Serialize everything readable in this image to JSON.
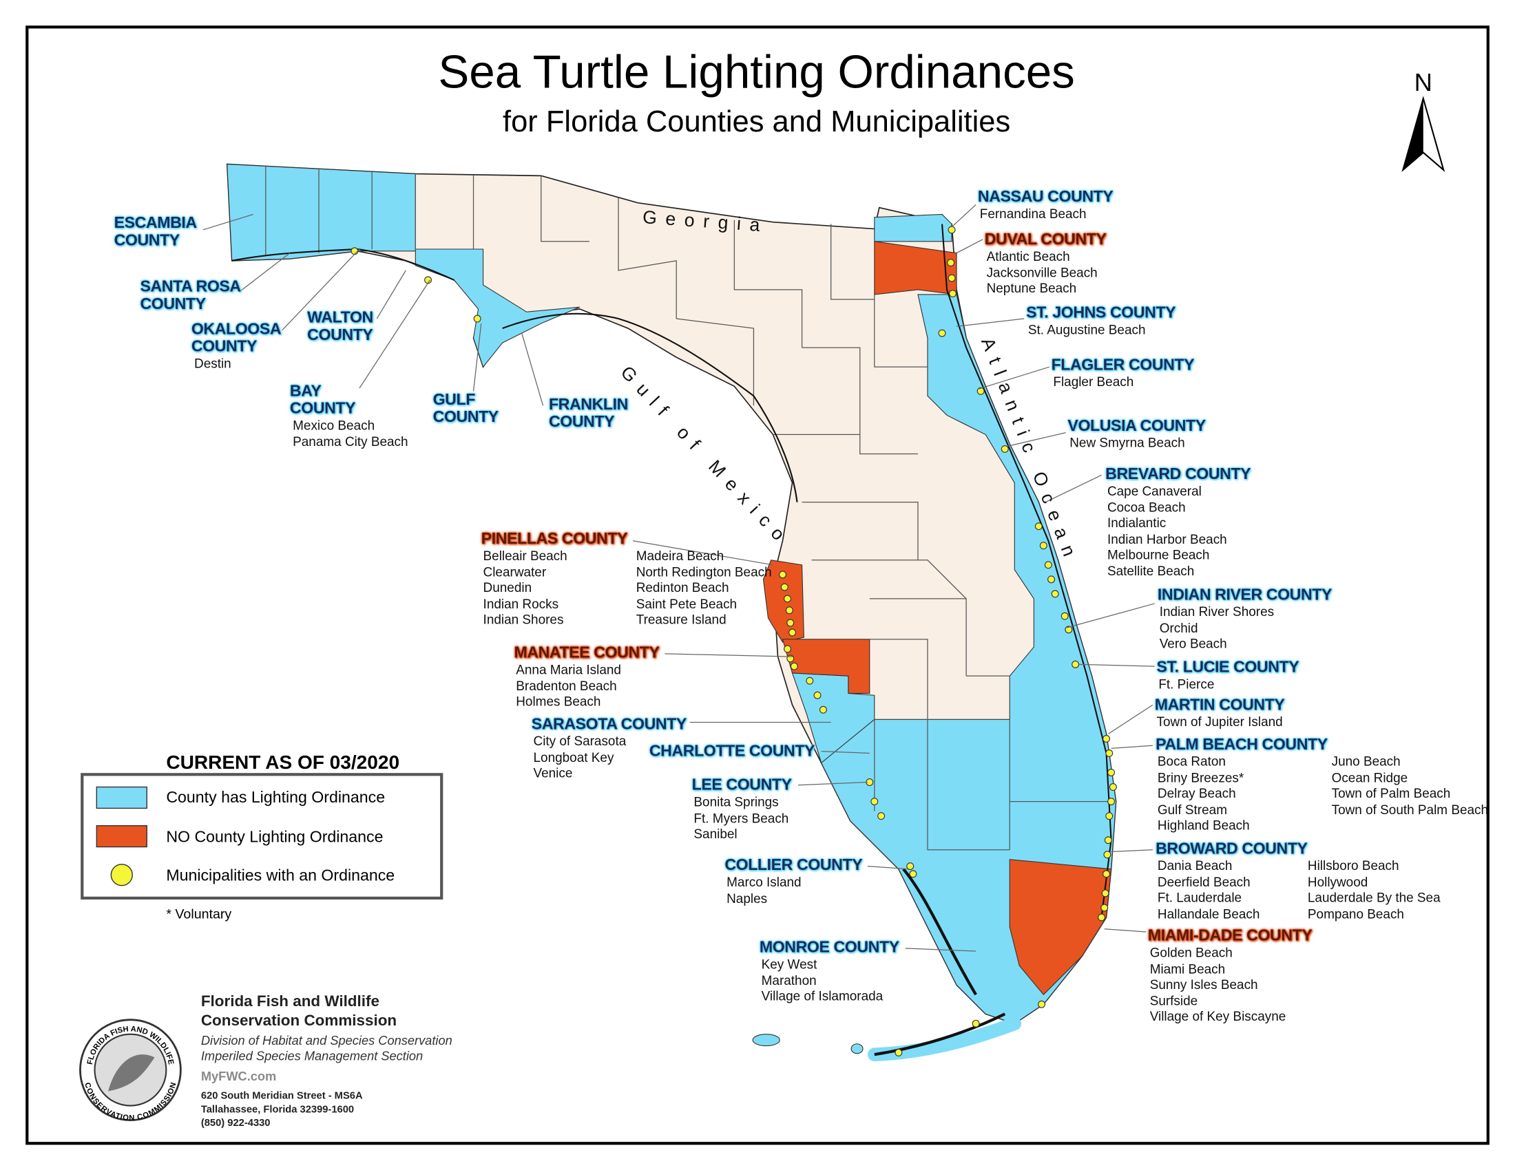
{
  "title": "Sea Turtle Lighting Ordinances",
  "subtitle": "for Florida Counties and Municipalities",
  "north": "N",
  "water_labels": [
    "Georgia",
    "Gulf of Mexico",
    "Atlantic Ocean"
  ],
  "counties": [
    {
      "name": "ESCAMBIA COUNTY",
      "has_ordinance": true,
      "municipalities": []
    },
    {
      "name": "SANTA ROSA COUNTY",
      "has_ordinance": true,
      "municipalities": []
    },
    {
      "name": "OKALOOSA COUNTY",
      "has_ordinance": true,
      "municipalities": [
        "Destin"
      ]
    },
    {
      "name": "WALTON COUNTY",
      "has_ordinance": true,
      "municipalities": []
    },
    {
      "name": "BAY COUNTY",
      "has_ordinance": true,
      "municipalities": [
        "Mexico Beach",
        "Panama City Beach"
      ]
    },
    {
      "name": "GULF COUNTY",
      "has_ordinance": true,
      "municipalities": []
    },
    {
      "name": "FRANKLIN COUNTY",
      "has_ordinance": true,
      "municipalities": []
    },
    {
      "name": "NASSAU COUNTY",
      "has_ordinance": true,
      "municipalities": [
        "Fernandina Beach"
      ]
    },
    {
      "name": "DUVAL COUNTY",
      "has_ordinance": false,
      "municipalities": [
        "Atlantic Beach",
        "Jacksonville Beach",
        "Neptune Beach"
      ]
    },
    {
      "name": "ST. JOHNS COUNTY",
      "has_ordinance": true,
      "municipalities": [
        "St. Augustine Beach"
      ]
    },
    {
      "name": "FLAGLER COUNTY",
      "has_ordinance": true,
      "municipalities": [
        "Flagler Beach"
      ]
    },
    {
      "name": "VOLUSIA COUNTY",
      "has_ordinance": true,
      "municipalities": [
        "New Smyrna Beach"
      ]
    },
    {
      "name": "BREVARD COUNTY",
      "has_ordinance": true,
      "municipalities": [
        "Cape Canaveral",
        "Cocoa Beach",
        "Indialantic",
        "Indian Harbor Beach",
        "Melbourne Beach",
        "Satellite Beach"
      ]
    },
    {
      "name": "INDIAN RIVER COUNTY",
      "has_ordinance": true,
      "municipalities": [
        "Indian River Shores",
        "Orchid",
        "Vero Beach"
      ]
    },
    {
      "name": "ST. LUCIE COUNTY",
      "has_ordinance": true,
      "municipalities": [
        "Ft. Pierce"
      ]
    },
    {
      "name": "MARTIN COUNTY",
      "has_ordinance": true,
      "municipalities": [
        "Town of Jupiter Island"
      ]
    },
    {
      "name": "PALM BEACH COUNTY",
      "has_ordinance": true,
      "municipalities": [
        "Boca Raton",
        "Briny Breezes*",
        "Delray Beach",
        "Gulf Stream",
        "Highland Beach",
        "Juno Beach",
        "Ocean Ridge",
        "Town of Palm Beach",
        "Town of South Palm Beach"
      ]
    },
    {
      "name": "BROWARD COUNTY",
      "has_ordinance": true,
      "municipalities": [
        "Dania Beach",
        "Deerfield Beach",
        "Ft. Lauderdale",
        "Hallandale Beach",
        "Hillsboro Beach",
        "Hollywood",
        "Lauderdale By the Sea",
        "Pompano Beach"
      ]
    },
    {
      "name": "MIAMI-DADE COUNTY",
      "has_ordinance": false,
      "municipalities": [
        "Golden Beach",
        "Miami Beach",
        "Sunny Isles Beach",
        "Surfside",
        "Village of Key Biscayne"
      ]
    },
    {
      "name": "MONROE COUNTY",
      "has_ordinance": true,
      "municipalities": [
        "Key West",
        "Marathon",
        "Village of Islamorada"
      ]
    },
    {
      "name": "COLLIER COUNTY",
      "has_ordinance": true,
      "municipalities": [
        "Marco Island",
        "Naples"
      ]
    },
    {
      "name": "LEE COUNTY",
      "has_ordinance": true,
      "municipalities": [
        "Bonita Springs",
        "Ft. Myers Beach",
        "Sanibel"
      ]
    },
    {
      "name": "CHARLOTTE COUNTY",
      "has_ordinance": true,
      "municipalities": []
    },
    {
      "name": "SARASOTA COUNTY",
      "has_ordinance": true,
      "municipalities": [
        "City of Sarasota",
        "Longboat Key",
        "Venice"
      ]
    },
    {
      "name": "MANATEE COUNTY",
      "has_ordinance": false,
      "municipalities": [
        "Anna Maria Island",
        "Bradenton Beach",
        "Holmes Beach"
      ]
    },
    {
      "name": "PINELLAS COUNTY",
      "has_ordinance": false,
      "municipalities": [
        "Belleair Beach",
        "Clearwater",
        "Dunedin",
        "Indian Rocks",
        "Indian Shores",
        "Madeira Beach",
        "North Redington Beach",
        "Redinton Beach",
        "Saint Pete Beach",
        "Treasure Island"
      ]
    }
  ],
  "legend": {
    "heading": "CURRENT AS OF 03/2020",
    "items": [
      "County has Lighting Ordinance",
      "NO County Lighting Ordinance",
      "Municipalities with an Ordinance"
    ],
    "note": "* Voluntary"
  },
  "agency": {
    "seal_top": "FLORIDA FISH AND WILDLIFE",
    "seal_bottom": "CONSERVATION COMMISSION",
    "name_lines": [
      "Florida Fish and Wildlife",
      "Conservation Commission"
    ],
    "division_lines": [
      "Division of Habitat and Species Conservation",
      "Imperiled Species Management Section"
    ],
    "website": "MyFWC.com",
    "address_lines": [
      "620 South Meridian Street - MS6A",
      "Tallahassee, Florida 32399-1600",
      "(850) 922-4330"
    ]
  }
}
